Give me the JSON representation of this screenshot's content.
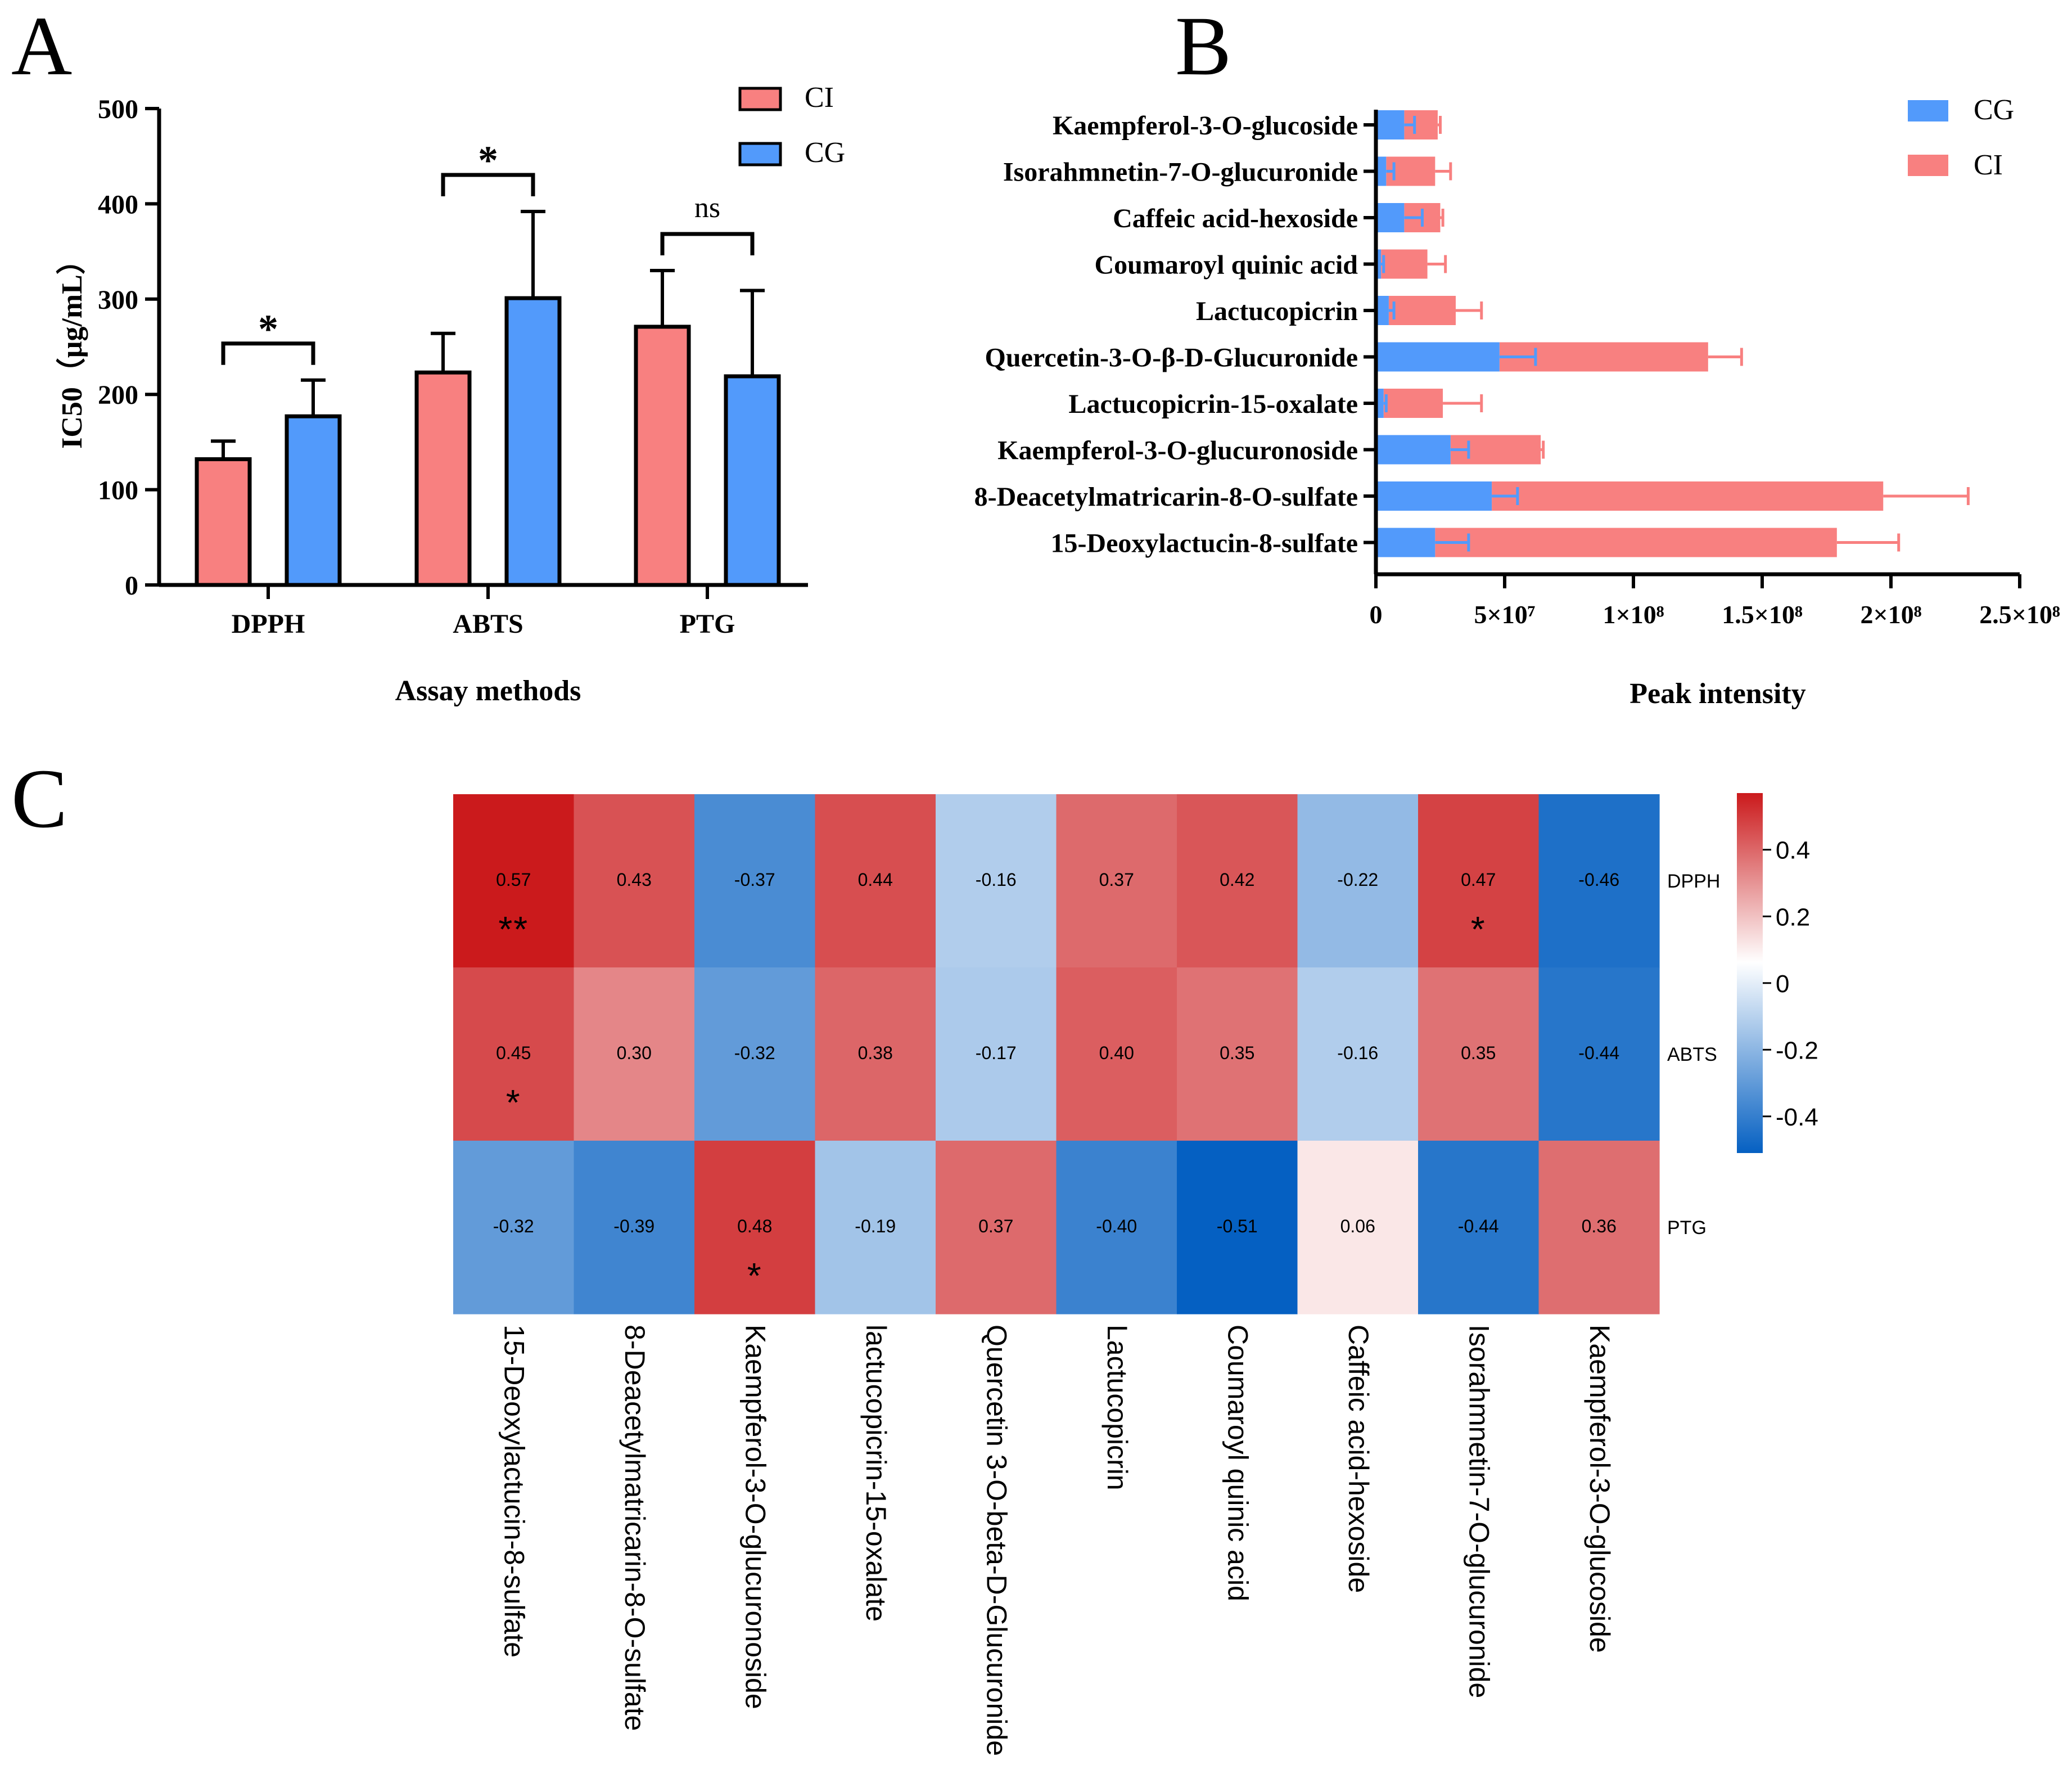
{
  "panel_labels": {
    "a": "A",
    "b": "B",
    "c": "C"
  },
  "colors": {
    "ci": "#F88080",
    "cg": "#529AFB",
    "heat_neg": "#0560C2",
    "heat_mid": "#FFFFFF",
    "heat_pos": "#CB1A1C"
  },
  "chart_data": [
    {
      "id": "A",
      "type": "bar",
      "title": "",
      "xlabel": "Assay methods",
      "ylabel": "IC50（μg/mL）",
      "ylim": [
        0,
        500
      ],
      "yticks": [
        "0",
        "100",
        "200",
        "300",
        "400",
        "500"
      ],
      "categories": [
        "DPPH",
        "ABTS",
        "PTG"
      ],
      "series": [
        {
          "name": "CI",
          "color": "#F88080",
          "values": [
            132,
            223,
            271
          ],
          "errors": [
            19,
            41,
            59
          ]
        },
        {
          "name": "CG",
          "color": "#529AFB",
          "values": [
            177,
            301,
            219
          ],
          "errors": [
            38,
            91,
            90
          ]
        }
      ],
      "significance": [
        "*",
        "*",
        "ns"
      ],
      "legend": [
        "CI",
        "CG"
      ],
      "legend_position": "top-right"
    },
    {
      "id": "B",
      "type": "bar",
      "orientation": "horizontal",
      "stacked": true,
      "xlabel": "Peak intensity",
      "ylabel": "",
      "xlim": [
        0,
        250000000
      ],
      "xticks": [
        "0",
        "5×10⁷",
        "1×10⁸",
        "1.5×10⁸",
        "2×10⁸",
        "2.5×10⁸"
      ],
      "categories": [
        "Kaempferol-3-O-glucoside",
        "Isorahmnetin-7-O-glucuronide",
        "Caffeic acid-hexoside",
        "Coumaroyl quinic acid",
        "Lactucopicrin",
        "Quercetin-3-O-β-D-Glucuronide",
        "Lactucopicrin-15-oxalate",
        "Kaempferol-3-O-glucuronoside",
        "8-Deacetylmatricarin-8-O-sulfate",
        "15-Deoxylactucin-8-sulfate"
      ],
      "series": [
        {
          "name": "CG",
          "color": "#529AFB",
          "values": [
            11000000,
            4000000,
            11000000,
            2000000,
            5000000,
            48000000,
            3000000,
            29000000,
            45000000,
            23000000
          ],
          "errors": [
            4000000,
            3000000,
            7000000,
            1000000,
            2000000,
            14000000,
            1000000,
            7000000,
            10000000,
            13000000
          ]
        },
        {
          "name": "CI",
          "color": "#F88080",
          "values": [
            13000000,
            19000000,
            14000000,
            18000000,
            26000000,
            81000000,
            23000000,
            35000000,
            152000000,
            156000000
          ],
          "errors": [
            1000000,
            6000000,
            1000000,
            7000000,
            10000000,
            13000000,
            15000000,
            1000000,
            33000000,
            24000000
          ]
        }
      ],
      "legend": [
        "CG",
        "CI"
      ],
      "legend_position": "top-right"
    },
    {
      "id": "C",
      "type": "heatmap",
      "rows": [
        "DPPH",
        "ABTS",
        "PTG"
      ],
      "columns": [
        "15-Deoxylactucin-8-sulfate",
        "8-Deacetylmatricarin-8-O-sulfate",
        "Kaempferol-3-O-glucuronoside",
        "lactucopicrin-15-oxalate",
        "Quercetin 3-O-beta-D-Glucuronide",
        "Lactucopicrin",
        "Coumaroyl quinic acid",
        "Caffeic acid-hexoside",
        "Isorahmnetin-7-O-glucuronide",
        "Kaempferol-3-O-glucoside"
      ],
      "values": [
        [
          0.57,
          0.43,
          -0.37,
          0.44,
          -0.16,
          0.37,
          0.42,
          -0.22,
          0.47,
          -0.46
        ],
        [
          0.45,
          0.3,
          -0.32,
          0.38,
          -0.17,
          0.4,
          0.35,
          -0.16,
          0.35,
          -0.44
        ],
        [
          -0.32,
          -0.39,
          0.48,
          -0.19,
          0.37,
          -0.4,
          -0.51,
          0.06,
          -0.44,
          0.36
        ]
      ],
      "labels": [
        [
          "0.57",
          "0.43",
          "-0.37",
          "0.44",
          "-0.16",
          "0.37",
          "0.42",
          "-0.22",
          "0.47",
          "-0.46"
        ],
        [
          "0.45",
          "0.30",
          "-0.32",
          "0.38",
          "-0.17",
          "0.40",
          "0.35",
          "-0.16",
          "0.35",
          "-0.44"
        ],
        [
          "-0.32",
          "-0.39",
          "0.48",
          "-0.19",
          "0.37",
          "-0.40",
          "-0.51",
          "0.06",
          "-0.44",
          "0.36"
        ]
      ],
      "stars": [
        [
          "**",
          "",
          "",
          "",
          "",
          "",
          "",
          "",
          "*",
          ""
        ],
        [
          "*",
          "",
          "",
          "",
          "",
          "",
          "",
          "",
          "",
          ""
        ],
        [
          "",
          "",
          "*",
          "",
          "",
          "",
          "",
          "",
          "",
          ""
        ]
      ],
      "colorbar": {
        "range": [
          -0.51,
          0.57
        ],
        "ticks": [
          0.4,
          0.2,
          0,
          -0.2,
          -0.4
        ],
        "tick_labels": [
          "0.4",
          "0.2",
          "0",
          "-0.2",
          "-0.4"
        ]
      }
    }
  ]
}
